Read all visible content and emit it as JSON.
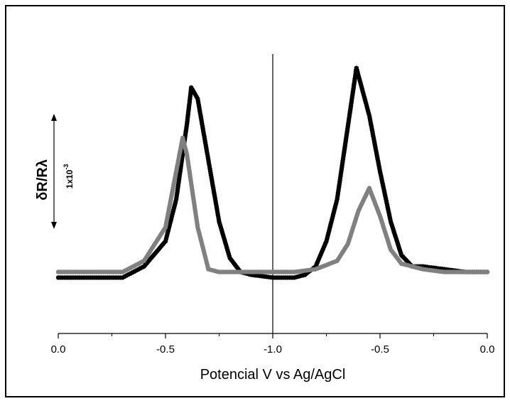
{
  "chart_data": {
    "type": "scatter",
    "title": "",
    "xlabel": "Potencial V vs Ag/AgCl",
    "ylabel": "δR/Rλ",
    "scale_bar_label": "1x10",
    "scale_bar_exponent": "-3",
    "x_tick_labels": [
      "0.0",
      "-0.5",
      "-1.0",
      "-0.5",
      "0.0"
    ],
    "grid": false,
    "legend": "none",
    "note": "x axis runs from 0.0 to -1.0 V (forward scan) then back to 0.0 V (reverse scan); vertical line marks the reversal at -1.0 V",
    "series": [
      {
        "color": "#000000",
        "peak_forward_x": -0.62,
        "peak_reverse_x": -0.61,
        "points": [
          [
            0.0,
            0.2
          ],
          [
            -0.1,
            0.2
          ],
          [
            -0.2,
            0.2
          ],
          [
            -0.3,
            0.2
          ],
          [
            -0.4,
            0.24
          ],
          [
            -0.5,
            0.33
          ],
          [
            -0.55,
            0.48
          ],
          [
            -0.6,
            0.75
          ],
          [
            -0.62,
            0.88
          ],
          [
            -0.65,
            0.84
          ],
          [
            -0.7,
            0.62
          ],
          [
            -0.75,
            0.4
          ],
          [
            -0.8,
            0.27
          ],
          [
            -0.85,
            0.22
          ],
          [
            -0.9,
            0.21
          ],
          [
            -1.0,
            0.2
          ],
          [
            -0.9,
            0.2
          ],
          [
            -0.85,
            0.21
          ],
          [
            -0.8,
            0.24
          ],
          [
            -0.75,
            0.33
          ],
          [
            -0.7,
            0.48
          ],
          [
            -0.65,
            0.74
          ],
          [
            -0.61,
            0.95
          ],
          [
            -0.55,
            0.78
          ],
          [
            -0.5,
            0.58
          ],
          [
            -0.45,
            0.4
          ],
          [
            -0.4,
            0.28
          ],
          [
            -0.35,
            0.24
          ],
          [
            -0.3,
            0.24
          ],
          [
            -0.2,
            0.23
          ],
          [
            -0.1,
            0.22
          ],
          [
            0.0,
            0.22
          ]
        ]
      },
      {
        "color": "#808080",
        "peak_forward_x": -0.58,
        "peak_reverse_x": -0.55,
        "points": [
          [
            0.0,
            0.22
          ],
          [
            -0.1,
            0.22
          ],
          [
            -0.2,
            0.22
          ],
          [
            -0.3,
            0.22
          ],
          [
            -0.4,
            0.26
          ],
          [
            -0.5,
            0.38
          ],
          [
            -0.55,
            0.58
          ],
          [
            -0.58,
            0.7
          ],
          [
            -0.6,
            0.64
          ],
          [
            -0.65,
            0.38
          ],
          [
            -0.7,
            0.23
          ],
          [
            -0.75,
            0.22
          ],
          [
            -0.85,
            0.22
          ],
          [
            -1.0,
            0.22
          ],
          [
            -0.9,
            0.22
          ],
          [
            -0.8,
            0.23
          ],
          [
            -0.7,
            0.26
          ],
          [
            -0.65,
            0.32
          ],
          [
            -0.6,
            0.44
          ],
          [
            -0.55,
            0.52
          ],
          [
            -0.5,
            0.42
          ],
          [
            -0.45,
            0.3
          ],
          [
            -0.4,
            0.25
          ],
          [
            -0.3,
            0.23
          ],
          [
            -0.2,
            0.22
          ],
          [
            -0.1,
            0.22
          ],
          [
            0.0,
            0.22
          ]
        ]
      }
    ]
  }
}
